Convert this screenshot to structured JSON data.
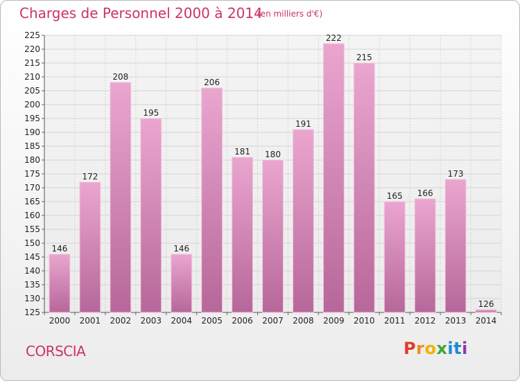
{
  "header": {
    "title": "Charges de Personnel 2000 à 2014",
    "subtitle": "(en milliers d'€)"
  },
  "footer": {
    "commune": "CORSCIA",
    "logo_letters": [
      "P",
      "r",
      "o",
      "x",
      "i",
      "t",
      "i"
    ]
  },
  "colors": {
    "title": "#cc3366",
    "bar_top": "#eaa6cf",
    "bar_bottom": "#b7679a",
    "grid": "#d4d4d4",
    "logo": [
      "#e23b2e",
      "#ef8a1a",
      "#f2b200",
      "#3aa935",
      "#1e88d4",
      "#1e88d4",
      "#8a3aa8"
    ]
  },
  "chart_data": {
    "type": "bar",
    "title": "Charges de Personnel 2000 à 2014",
    "subtitle": "(en milliers d'€)",
    "categories": [
      "2000",
      "2001",
      "2002",
      "2003",
      "2004",
      "2005",
      "2006",
      "2007",
      "2008",
      "2009",
      "2010",
      "2011",
      "2012",
      "2013",
      "2014"
    ],
    "values": [
      146,
      172,
      208,
      195,
      146,
      206,
      181,
      180,
      191,
      222,
      215,
      165,
      166,
      173,
      126
    ],
    "ylim": [
      125,
      225
    ],
    "yticks": [
      125,
      130,
      135,
      140,
      145,
      150,
      155,
      160,
      165,
      170,
      175,
      180,
      185,
      190,
      195,
      200,
      205,
      210,
      215,
      220,
      225
    ],
    "grid": true,
    "data_labels": true
  }
}
